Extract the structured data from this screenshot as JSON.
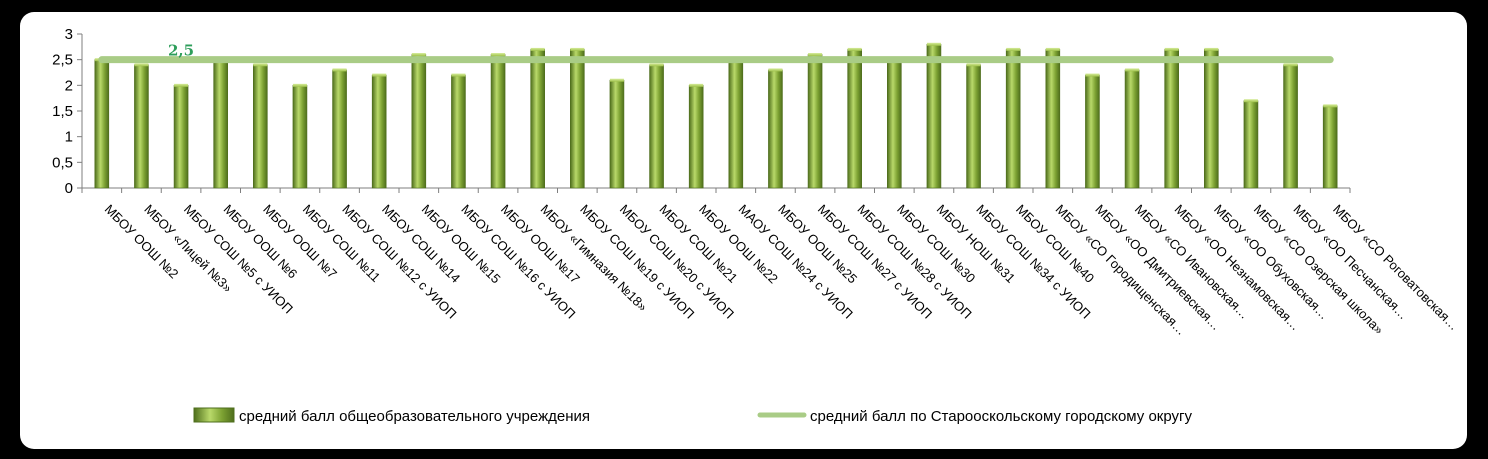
{
  "chart_data": {
    "type": "bar",
    "categories": [
      "МБОУ ООШ №2",
      "МБОУ «Лицей №3»",
      "МБОУ СОШ №5 с УИОП",
      "МБОУ ООШ №6",
      "МБОУ ООШ №7",
      "МБОУ СОШ №11",
      "МБОУ СОШ №12 с УИОП",
      "МБОУ СОШ №14",
      "МБОУ ООШ №15",
      "МБОУ СОШ №16 с УИОП",
      "МБОУ ООШ №17",
      "МБОУ «Гимназия №18»",
      "МБОУ СОШ №19 с УИОП",
      "МБОУ СОШ №20 с УИОП",
      "МБОУ СОШ №21",
      "МБОУ ООШ №22",
      "МАОУ СОШ №24 с УИОП",
      "МБОУ ООШ №25",
      "МБОУ СОШ №27 с УИОП",
      "МБОУ СОШ №28 с УИОП",
      "МБОУ СОШ №30",
      "МБОУ НОШ №31",
      "МБОУ СОШ №34 с УИОП",
      "МБОУ СОШ №40",
      "МБОУ «СО Городищенская…",
      "МБОУ «ОО Дмитриевская…",
      "МБОУ «СО Ивановская…",
      "МБОУ «ОО Незнамовская…",
      "МБОУ «ОО Обуховская…",
      "МБОУ «СО Озерская школа»",
      "МБОУ «ОО Песчанская…",
      "МБОУ «СО Роговатовская…"
    ],
    "series": [
      {
        "name": "средний балл общеобразовательного учреждения",
        "values": [
          2.5,
          2.4,
          2.0,
          2.5,
          2.4,
          2.0,
          2.3,
          2.2,
          2.6,
          2.2,
          2.6,
          2.7,
          2.7,
          2.1,
          2.4,
          2.0,
          2.5,
          2.3,
          2.6,
          2.7,
          2.5,
          2.8,
          2.4,
          2.7,
          2.7,
          2.2,
          2.3,
          2.7,
          2.7,
          1.7,
          2.4,
          1.6
        ]
      }
    ],
    "reference_line": {
      "name": "средний балл по Старооскольскому городскому округу",
      "value": 2.5,
      "label": "2,5"
    },
    "ylim": [
      0,
      3
    ],
    "yticks": [
      "0",
      "0,5",
      "1",
      "1,5",
      "2",
      "2,5",
      "3"
    ],
    "legend_position": "bottom",
    "colors": {
      "bar_light": "#b9d96a",
      "bar_mid": "#7da233",
      "bar_dark": "#4e6e1c",
      "reference_line": "#a9cc86",
      "reference_label": "#2e9e5b"
    }
  }
}
